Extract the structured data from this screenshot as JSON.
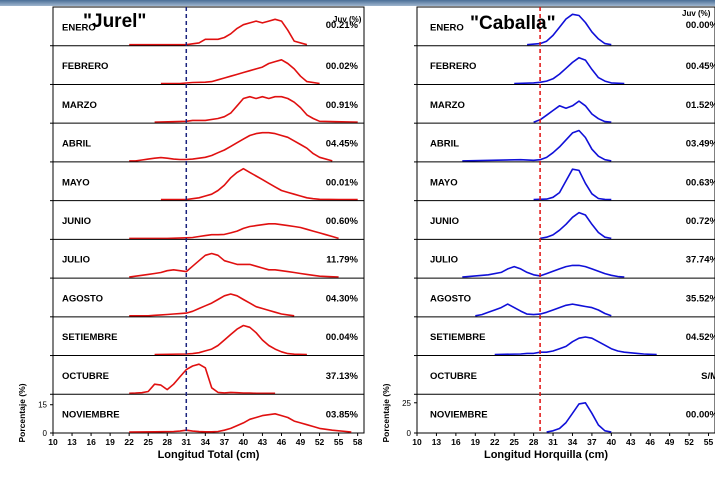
{
  "chart_data": [
    {
      "type": "line",
      "title": "\"Jurel\"",
      "xlabel": "Longitud Total (cm)",
      "ylabel": "Porcentaje (%)",
      "ytick": "15",
      "ytick_zero": "0",
      "pct_header": "Juv (%)",
      "xlim": [
        10,
        59
      ],
      "x_ticks": [
        10,
        13,
        16,
        19,
        22,
        25,
        28,
        31,
        34,
        37,
        40,
        43,
        46,
        49,
        52,
        55,
        58
      ],
      "ref_line": 31,
      "ymax": 18,
      "color": "#e01010",
      "ref_color": "#1a237e",
      "panels": [
        {
          "month": "ENERO",
          "pct": "00.21%",
          "x": [
            22,
            31,
            32,
            33,
            34,
            35,
            36,
            37,
            38,
            39,
            40,
            41,
            42,
            43,
            44,
            45,
            46,
            47,
            48,
            50
          ],
          "y": [
            0,
            0,
            0.5,
            1,
            3,
            3,
            3,
            4,
            6,
            9,
            11,
            12,
            13,
            12,
            13,
            14,
            13,
            8,
            2,
            0
          ]
        },
        {
          "month": "FEBRERO",
          "pct": "00.02%",
          "x": [
            27,
            30,
            32,
            34,
            35,
            36,
            37,
            38,
            39,
            40,
            41,
            42,
            43,
            44,
            45,
            46,
            47,
            48,
            49,
            50,
            52
          ],
          "y": [
            0,
            0,
            0.5,
            0.7,
            1,
            2,
            3,
            4,
            5,
            6,
            7,
            8,
            9,
            11,
            12,
            13,
            11,
            8,
            4,
            1,
            0
          ]
        },
        {
          "month": "MARZO",
          "pct": "00.91%",
          "x": [
            26,
            31,
            32,
            34,
            36,
            37,
            38,
            39,
            40,
            41,
            42,
            43,
            44,
            45,
            46,
            47,
            48,
            49,
            50,
            51,
            52,
            58
          ],
          "y": [
            0,
            0.5,
            1,
            1,
            2,
            3,
            5,
            9,
            13,
            14,
            13,
            14,
            13,
            14,
            14,
            13,
            11,
            8,
            4,
            2,
            0.5,
            0
          ]
        },
        {
          "month": "ABRIL",
          "pct": "04.45%",
          "x": [
            22,
            23,
            24,
            25,
            26,
            27,
            28,
            29,
            30,
            31,
            32,
            33,
            34,
            35,
            36,
            37,
            38,
            39,
            40,
            41,
            42,
            43,
            44,
            45,
            46,
            47,
            48,
            49,
            50,
            51,
            52,
            54
          ],
          "y": [
            0,
            0,
            0.5,
            1,
            1.5,
            1.8,
            1.5,
            1,
            0.8,
            0.8,
            1,
            1.5,
            2,
            3,
            4.5,
            6,
            8,
            10,
            12,
            14,
            15,
            15.5,
            15.5,
            15,
            14,
            13,
            11,
            9,
            7,
            4,
            2,
            0
          ]
        },
        {
          "month": "MAYO",
          "pct": "00.01%",
          "x": [
            27,
            31,
            32,
            33,
            34,
            35,
            36,
            37,
            38,
            39,
            40,
            41,
            42,
            43,
            44,
            45,
            46,
            47,
            48,
            49,
            50,
            51,
            52,
            55,
            58
          ],
          "y": [
            0,
            0,
            0.5,
            1,
            2,
            3,
            5,
            8,
            12,
            15,
            17,
            15,
            13,
            11,
            9,
            7,
            5,
            4,
            3,
            2,
            1,
            0.5,
            0.2,
            0.1,
            0
          ]
        },
        {
          "month": "JUNIO",
          "pct": "00.60%",
          "x": [
            22,
            28,
            31,
            32,
            33,
            34,
            35,
            36,
            37,
            38,
            39,
            40,
            41,
            42,
            43,
            44,
            45,
            46,
            47,
            48,
            49,
            50,
            51,
            52,
            53,
            54,
            55
          ],
          "y": [
            0,
            0,
            0.3,
            0.5,
            1,
            1.5,
            2,
            2,
            2.2,
            3,
            4,
            5.5,
            6.5,
            7,
            7.5,
            8,
            8,
            7.5,
            7,
            6.5,
            6,
            5,
            4,
            3,
            2,
            1,
            0
          ]
        },
        {
          "month": "JULIO",
          "pct": "11.79%",
          "x": [
            22,
            23,
            24,
            25,
            26,
            27,
            28,
            29,
            30,
            31,
            32,
            33,
            34,
            35,
            36,
            37,
            38,
            39,
            40,
            41,
            42,
            43,
            44,
            45,
            46,
            47,
            48,
            49,
            50,
            51,
            52,
            55
          ],
          "y": [
            0,
            0.5,
            1,
            1.5,
            2,
            2.5,
            3.5,
            4,
            3.5,
            3,
            6,
            9,
            12,
            13,
            12,
            9,
            8,
            7,
            7,
            7,
            6,
            5,
            4,
            4,
            3.5,
            3,
            2.5,
            2,
            1.5,
            1,
            0.5,
            0
          ]
        },
        {
          "month": "AGOSTO",
          "pct": "04.30%",
          "x": [
            22,
            23,
            24,
            25,
            26,
            27,
            28,
            29,
            30,
            31,
            32,
            33,
            34,
            35,
            36,
            37,
            38,
            39,
            40,
            41,
            42,
            43,
            44,
            45,
            46,
            47,
            48
          ],
          "y": [
            0,
            0,
            0,
            0,
            0.3,
            0.5,
            0.7,
            1,
            1.2,
            1.5,
            2.5,
            4,
            5.5,
            7,
            9,
            11,
            12,
            11,
            9,
            7,
            5,
            4,
            3,
            2,
            1,
            0.5,
            0
          ]
        },
        {
          "month": "SETIEMBRE",
          "pct": "00.04%",
          "x": [
            26,
            31,
            32,
            33,
            34,
            35,
            36,
            37,
            38,
            39,
            40,
            41,
            42,
            43,
            44,
            45,
            46,
            47,
            48,
            50
          ],
          "y": [
            0,
            0.3,
            0.5,
            1,
            2,
            3,
            5,
            8,
            11,
            14,
            16,
            15,
            12,
            8,
            5,
            3,
            1.5,
            0.5,
            0.2,
            0
          ]
        },
        {
          "month": "OCTUBRE",
          "pct": "37.13%",
          "x": [
            22,
            23,
            24,
            25,
            26,
            27,
            28,
            29,
            30,
            31,
            32,
            33,
            34,
            35,
            36,
            37,
            38,
            39,
            40,
            41,
            42,
            45
          ],
          "y": [
            0,
            0.1,
            0.3,
            1,
            5,
            4.5,
            2,
            5,
            9,
            13,
            15,
            16,
            14,
            3,
            0.5,
            0.2,
            0.5,
            0.3,
            0.1,
            0.1,
            0,
            0
          ]
        },
        {
          "month": "NOVIEMBRE",
          "pct": "03.85%",
          "x": [
            22,
            26,
            29,
            30,
            31,
            32,
            33,
            34,
            35,
            36,
            37,
            38,
            39,
            40,
            41,
            42,
            43,
            44,
            45,
            46,
            47,
            48,
            49,
            50,
            51,
            52,
            54,
            57
          ],
          "y": [
            0,
            0.1,
            0.3,
            0.5,
            1,
            0.5,
            0.2,
            0.1,
            0.1,
            0.3,
            1,
            2,
            3.5,
            5,
            7,
            8,
            9,
            9.5,
            10,
            9,
            8,
            6,
            5,
            4,
            3,
            2,
            1,
            0
          ]
        }
      ]
    },
    {
      "type": "line",
      "title": "\"Caballa\"",
      "xlabel": "Longitud Horquilla (cm)",
      "ylabel": "Porcentaje (%)",
      "ytick": "25",
      "ytick_zero": "0",
      "pct_header": "Juv (%)",
      "xlim": [
        10,
        56
      ],
      "x_ticks": [
        10,
        13,
        16,
        19,
        22,
        25,
        28,
        31,
        34,
        37,
        40,
        43,
        46,
        49,
        52,
        55
      ],
      "ref_line": 29,
      "ymax": 28,
      "color": "#1010d8",
      "ref_color": "#e01010",
      "panels": [
        {
          "month": "ENERO",
          "pct": "00.00%",
          "x": [
            27,
            29,
            30,
            31,
            32,
            33,
            34,
            35,
            36,
            37,
            38,
            39,
            40
          ],
          "y": [
            0,
            1,
            3,
            8,
            15,
            22,
            26,
            25,
            19,
            11,
            5,
            1,
            0
          ]
        },
        {
          "month": "FEBRERO",
          "pct": "00.45%",
          "x": [
            25,
            28,
            29,
            30,
            31,
            32,
            33,
            34,
            35,
            36,
            37,
            38,
            39,
            40,
            42
          ],
          "y": [
            0,
            0.5,
            1,
            2,
            4,
            8,
            13,
            18,
            22,
            20,
            12,
            5,
            2,
            0.5,
            0
          ]
        },
        {
          "month": "MARZO",
          "pct": "01.52%",
          "x": [
            28,
            29,
            30,
            31,
            32,
            33,
            34,
            35,
            36,
            37,
            38,
            39,
            40
          ],
          "y": [
            0,
            2,
            6,
            10,
            14,
            12,
            14,
            18,
            14,
            7,
            3,
            0.5,
            0
          ]
        },
        {
          "month": "ABRIL",
          "pct": "03.49%",
          "x": [
            17,
            26,
            28,
            29,
            30,
            31,
            32,
            33,
            34,
            35,
            36,
            37,
            38,
            39,
            40
          ],
          "y": [
            0,
            1,
            0.5,
            1,
            3,
            7,
            12,
            18,
            24,
            26,
            20,
            10,
            4,
            1,
            0
          ]
        },
        {
          "month": "MAYO",
          "pct": "00.63%",
          "x": [
            28,
            30,
            31,
            32,
            33,
            34,
            35,
            36,
            37,
            38,
            39,
            40
          ],
          "y": [
            0,
            0.5,
            2,
            6,
            16,
            26,
            25,
            14,
            5,
            1,
            0.2,
            0
          ]
        },
        {
          "month": "JUNIO",
          "pct": "00.72%",
          "x": [
            29,
            30,
            31,
            32,
            33,
            34,
            35,
            36,
            37,
            38,
            39,
            40
          ],
          "y": [
            0,
            1,
            3,
            7,
            12,
            18,
            22,
            20,
            12,
            5,
            1,
            0
          ]
        },
        {
          "month": "JULIO",
          "pct": "37.74%",
          "x": [
            17,
            19,
            21,
            23,
            24,
            25,
            26,
            27,
            28,
            29,
            30,
            31,
            32,
            33,
            34,
            35,
            36,
            37,
            38,
            39,
            40,
            41,
            42
          ],
          "y": [
            0,
            1,
            2,
            4,
            7,
            9,
            7,
            4,
            2,
            1,
            3,
            5,
            7,
            9,
            10,
            10,
            9,
            7,
            5,
            3,
            1.5,
            0.5,
            0
          ]
        },
        {
          "month": "AGOSTO",
          "pct": "35.52%",
          "x": [
            19,
            20,
            21,
            22,
            23,
            24,
            25,
            26,
            27,
            28,
            29,
            30,
            31,
            32,
            33,
            34,
            35,
            36,
            37,
            38,
            39,
            40
          ],
          "y": [
            0,
            1,
            3,
            5,
            7,
            10,
            7,
            4,
            1.5,
            1,
            1.5,
            3,
            5,
            7,
            9,
            10,
            9,
            8,
            7,
            5,
            2,
            0
          ]
        },
        {
          "month": "SETIEMBRE",
          "pct": "04.52%",
          "x": [
            22,
            26,
            27,
            28,
            29,
            30,
            31,
            32,
            33,
            34,
            35,
            36,
            37,
            38,
            39,
            40,
            41,
            42,
            43,
            44,
            45,
            46,
            47
          ],
          "y": [
            0,
            0.5,
            1,
            1,
            2,
            2,
            3,
            5,
            7,
            11,
            14,
            15,
            14,
            11,
            8,
            5,
            3,
            2,
            1.5,
            1,
            0.5,
            0.2,
            0
          ]
        },
        {
          "month": "OCTUBRE",
          "pct": "S/M",
          "x": [],
          "y": []
        },
        {
          "month": "NOVIEMBRE",
          "pct": "00.00%",
          "x": [
            30,
            31,
            32,
            33,
            34,
            35,
            36,
            37,
            38,
            39,
            40
          ],
          "y": [
            0,
            1,
            3,
            8,
            16,
            24,
            25,
            16,
            6,
            1,
            0
          ]
        }
      ]
    }
  ]
}
